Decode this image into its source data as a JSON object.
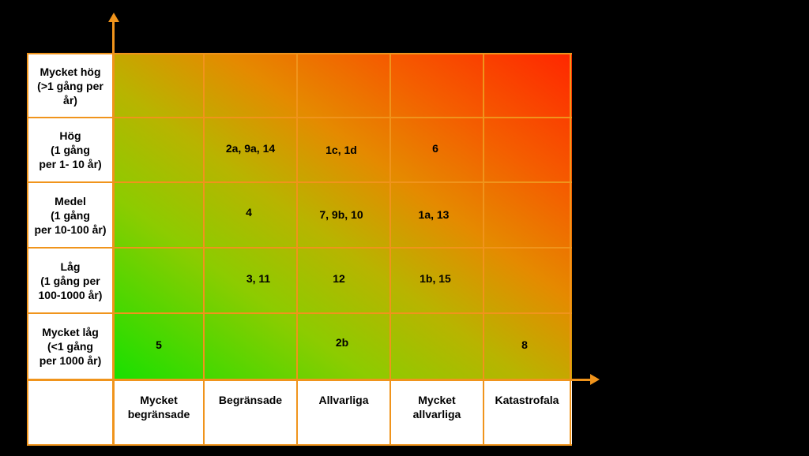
{
  "likelihood_levels": [
    "Mycket hög\n(>1 gång per\når)",
    "Hög\n(1 gång\nper 1- 10 år)",
    "Medel\n(1 gång\nper 10-100 år)",
    "Låg\n(1 gång per\n100-1000 år)",
    "Mycket låg\n(<1 gång\nper 1000 år)"
  ],
  "consequence_levels": [
    "Mycket\nbegränsade",
    "Begränsade",
    "Allvarliga",
    "Mycket\nallvarliga",
    "Katastrofala"
  ],
  "cells": {
    "hog_begransade": "2a, 9a, 14",
    "hog_allvarliga": "1c, 1d",
    "hog_mycket_allvarliga": "6",
    "medel_begransade": "4",
    "medel_allvarliga": "7, 9b, 10",
    "medel_mycket_allvarliga": "1a, 13",
    "lag_begransade": "3, 11",
    "lag_allvarliga": "12",
    "lag_mycket_allvarliga": "1b, 15",
    "mycketlag_mycket_begransade": "5",
    "mycketlag_allvarliga": "2b",
    "mycketlag_katastrofala": "8"
  },
  "colors": {
    "grid_line": "#f0941c",
    "low_risk": "#18e000",
    "high_risk": "#ff2600",
    "background": "#000000"
  }
}
